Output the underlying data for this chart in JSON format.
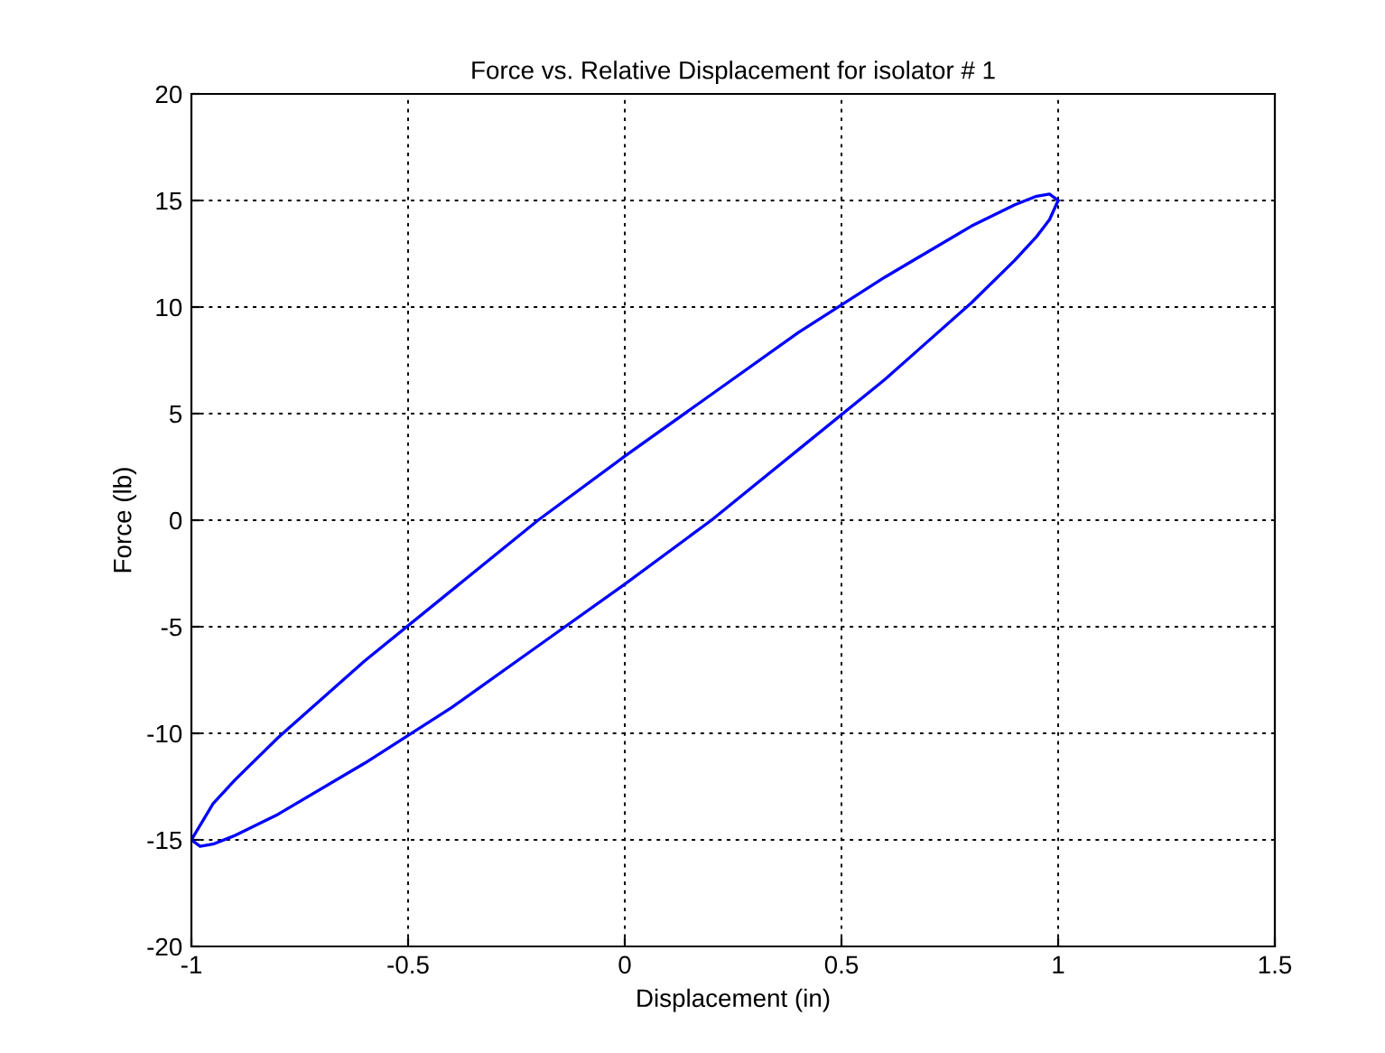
{
  "chart_data": {
    "type": "line",
    "title": "Force vs. Relative Displacement for isolator # 1",
    "xlabel": "Displacement (in)",
    "ylabel": "Force (lb)",
    "series": [
      {
        "color": "#0000ff",
        "x": [
          -1,
          -0.95,
          -0.9,
          -0.8,
          -0.6,
          -0.4,
          -0.2,
          0,
          0.2,
          0.4,
          0.6,
          0.8,
          0.9,
          0.95,
          0.98,
          1
        ],
        "values": [
          -15,
          -13.3,
          -12.2,
          -10.2,
          -6.6,
          -3.3,
          0,
          3,
          5.9,
          8.8,
          11.4,
          13.8,
          14.8,
          15.2,
          15.3,
          15
        ]
      },
      {
        "color": "#0000ff",
        "x": [
          -1,
          -0.98,
          -0.95,
          -0.9,
          -0.8,
          -0.6,
          -0.4,
          -0.2,
          0,
          0.2,
          0.4,
          0.6,
          0.8,
          0.9,
          0.95,
          0.98,
          1
        ],
        "values": [
          -15,
          -15.3,
          -15.2,
          -14.8,
          -13.8,
          -11.4,
          -8.8,
          -5.9,
          -3,
          0,
          3.3,
          6.6,
          10.2,
          12.2,
          13.3,
          14.1,
          15
        ]
      }
    ],
    "xlim": [
      -1,
      1.5
    ],
    "xticks": [
      -1,
      -0.5,
      0,
      0.5,
      1,
      1.5
    ],
    "ylim": [
      -20,
      20
    ],
    "yticks": [
      -20,
      -15,
      -10,
      -5,
      0,
      5,
      10,
      15,
      20
    ],
    "grid": true,
    "line_style": "solid",
    "marker": "none",
    "legend": false
  }
}
